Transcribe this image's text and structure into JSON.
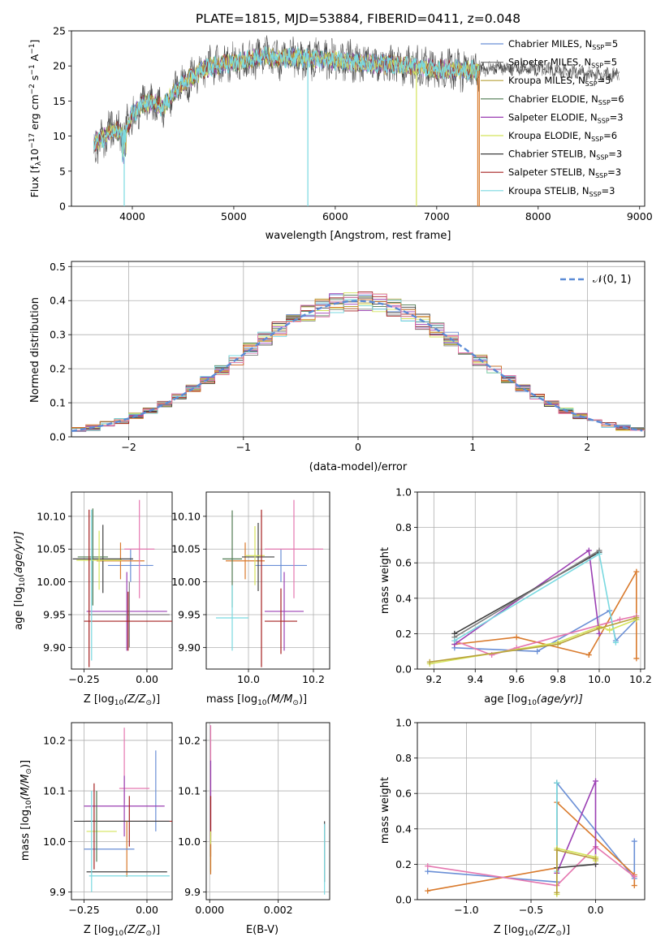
{
  "chart_data": [
    {
      "id": "spectrum",
      "type": "line",
      "title": "PLATE=1815, MJD=53884, FIBERID=0411, z=0.048",
      "xlabel": "wavelength [Angstrom, rest frame]",
      "ylabel": "Flux [f",
      "ylabel_sub": "λ",
      "ylabel_rest": "10",
      "ylabel_sup1": "−17",
      "ylabel_units": " erg cm",
      "ylabel_sup2": "−2",
      "ylabel_s": " s",
      "ylabel_sup3": "−1",
      "ylabel_a": " A",
      "ylabel_sup4": "−1",
      "ylabel_end": "]",
      "xlim": [
        3400,
        9050
      ],
      "ylim": [
        0,
        25
      ],
      "xticks": [
        4000,
        5000,
        6000,
        7000,
        8000,
        9000
      ],
      "yticks": [
        0,
        5,
        10,
        15,
        20,
        25
      ],
      "legend_placement": "upper-right",
      "legend": [
        {
          "label": "Chabrier MILES, N",
          "sub": "SSP",
          "value": "=5",
          "color": "#6a8fd6"
        },
        {
          "label": "Salpeter MILES, N",
          "sub": "SSP",
          "value": "=5",
          "color": "#7f7f7f"
        },
        {
          "label": "Kroupa MILES, N",
          "sub": "SSP",
          "value": "=5",
          "color": "#b8a13a"
        },
        {
          "label": "Chabrier ELODIE, N",
          "sub": "SSP",
          "value": "=6",
          "color": "#4f7a52"
        },
        {
          "label": "Salpeter ELODIE, N",
          "sub": "SSP",
          "value": "=3",
          "color": "#9b3fb3"
        },
        {
          "label": "Kroupa ELODIE, N",
          "sub": "SSP",
          "value": "=6",
          "color": "#d4e35a"
        },
        {
          "label": "Chabrier STELIB, N",
          "sub": "SSP",
          "value": "=3",
          "color": "#404040"
        },
        {
          "label": "Salpeter STELIB, N",
          "sub": "SSP",
          "value": "=3",
          "color": "#a52020"
        },
        {
          "label": "Kroupa STELIB, N",
          "sub": "SSP",
          "value": "=3",
          "color": "#7ad9e0"
        }
      ],
      "continuum": [
        [
          3620,
          9
        ],
        [
          3700,
          9.5
        ],
        [
          3800,
          11
        ],
        [
          3900,
          10.5
        ],
        [
          3950,
          11.5
        ],
        [
          4000,
          13
        ],
        [
          4100,
          14.5
        ],
        [
          4200,
          15
        ],
        [
          4300,
          14
        ],
        [
          4400,
          16
        ],
        [
          4500,
          17.5
        ],
        [
          4600,
          18.5
        ],
        [
          4700,
          19.5
        ],
        [
          4800,
          20
        ],
        [
          5000,
          20.5
        ],
        [
          5200,
          21
        ],
        [
          5300,
          21.5
        ],
        [
          5400,
          21
        ],
        [
          5600,
          21.3
        ],
        [
          5800,
          21
        ],
        [
          6000,
          20.8
        ],
        [
          6200,
          20.5
        ],
        [
          6400,
          20.3
        ],
        [
          6600,
          20.2
        ],
        [
          6800,
          20
        ],
        [
          7000,
          19.5
        ],
        [
          7200,
          19.5
        ],
        [
          7400,
          19.3
        ],
        [
          7600,
          19.8
        ],
        [
          7800,
          19.7
        ],
        [
          8000,
          19.6
        ],
        [
          8200,
          19.4
        ],
        [
          8400,
          19
        ],
        [
          8600,
          18.6
        ],
        [
          8800,
          18.8
        ]
      ],
      "noisy_range": [
        3620,
        7420
      ],
      "drops": [
        {
          "x": 3920,
          "color": "#7ad9e0"
        },
        {
          "x": 5730,
          "color": "#7ad9e0"
        },
        {
          "x": 6800,
          "color": "#d4e35a"
        },
        {
          "x": 7405,
          "color": "#d97a2c"
        },
        {
          "x": 7420,
          "color": "#d97a2c"
        }
      ]
    },
    {
      "id": "residuals",
      "type": "line",
      "xlabel": "(data-model)/error",
      "ylabel": "Normed distribution",
      "xlim": [
        -2.5,
        2.5
      ],
      "ylim": [
        0,
        0.515
      ],
      "xticks": [
        -2,
        -1,
        0,
        1,
        2
      ],
      "xticklabels": [
        "−2",
        "−1",
        "0",
        "1",
        "2"
      ],
      "yticks": [
        0.0,
        0.1,
        0.2,
        0.3,
        0.4,
        0.5
      ],
      "yticklabels": [
        "0.0",
        "0.1",
        "0.2",
        "0.3",
        "0.4",
        "0.5"
      ],
      "legend_label": "𝒩(0, 1)",
      "legend_placement": "upper-right",
      "bin_width": 0.125,
      "grid": true
    },
    {
      "id": "age_vs_Z",
      "type": "scatter",
      "xlabel": "Z [log",
      "xlabel_sub": "10",
      "xlabel_rest": "(Z/Z",
      "xlabel_odot": "⊙",
      "xlabel_end": ")]",
      "ylabel": "age  [log",
      "ylabel_sub": "10",
      "ylabel_rest": "(age/yr)]",
      "xlim": [
        -0.3,
        0.1
      ],
      "ylim": [
        9.867,
        10.137
      ],
      "xticks": [
        -0.25,
        0.0
      ],
      "xticklabels": [
        "−0.25",
        "0.00"
      ],
      "yticks": [
        9.9,
        9.95,
        10.0,
        10.05,
        10.1
      ],
      "yticklabels": [
        "9.90",
        "9.95",
        "10.00",
        "10.05",
        "10.10"
      ],
      "points": [
        {
          "x": -0.065,
          "xe": 0.09,
          "y": 10.025,
          "ye": 0.025,
          "color": "#6a8fd6"
        },
        {
          "x": -0.105,
          "xe": 0.095,
          "y": 10.032,
          "ye": 0.028,
          "color": "#d97a2c"
        },
        {
          "x": -0.175,
          "xe": 0.12,
          "y": 10.035,
          "ye": 0.052,
          "color": "#404040"
        },
        {
          "x": -0.215,
          "xe": 0.06,
          "y": 10.038,
          "ye": 0.074,
          "color": "#4f7a52"
        },
        {
          "x": -0.19,
          "xe": 0.09,
          "y": 10.033,
          "ye": 0.045,
          "color": "#d4e35a"
        },
        {
          "x": -0.03,
          "xe": 0.06,
          "y": 10.05,
          "ye": 0.075,
          "color": "#e577b0"
        },
        {
          "x": -0.08,
          "xe": 0.16,
          "y": 9.955,
          "ye": 0.06,
          "color": "#9b3fb3"
        },
        {
          "x": -0.07,
          "xe": 0.16,
          "y": 9.95,
          "ye": 0.05,
          "color": "#7f7f7f"
        },
        {
          "x": -0.075,
          "xe": 0.175,
          "y": 9.94,
          "ye": 0.045,
          "color": "#a52020"
        },
        {
          "x": -0.23,
          "xe": 0.0,
          "y": 9.99,
          "ye": 0.12,
          "color": "#a52020"
        },
        {
          "x": -0.22,
          "xe": 0.0,
          "y": 9.995,
          "ye": 0.115,
          "color": "#7ad9e0"
        }
      ]
    },
    {
      "id": "age_vs_mass",
      "type": "scatter",
      "xlabel": "mass [log",
      "xlabel_sub": "10",
      "xlabel_rest": "(M/M",
      "xlabel_odot": "⊙",
      "xlabel_end": ")]",
      "xlim": [
        9.87,
        10.25
      ],
      "ylim": [
        9.867,
        10.137
      ],
      "xticks": [
        10.0,
        10.2
      ],
      "xticklabels": [
        "10.0",
        "10.2"
      ],
      "yticks": [
        9.9,
        9.95,
        10.0,
        10.05,
        10.1
      ],
      "yticklabels": [
        "9.90",
        "9.95",
        "10.00",
        "10.05",
        "10.10"
      ],
      "points": [
        {
          "x": 10.1,
          "xe": 0.08,
          "y": 10.025,
          "ye": 0.025,
          "color": "#6a8fd6"
        },
        {
          "x": 9.99,
          "xe": 0.06,
          "y": 10.032,
          "ye": 0.028,
          "color": "#d97a2c"
        },
        {
          "x": 10.03,
          "xe": 0.05,
          "y": 10.038,
          "ye": 0.052,
          "color": "#404040"
        },
        {
          "x": 9.95,
          "xe": 0.03,
          "y": 10.035,
          "ye": 0.074,
          "color": "#4f7a52"
        },
        {
          "x": 10.02,
          "xe": 0.03,
          "y": 10.04,
          "ye": 0.045,
          "color": "#d4e35a"
        },
        {
          "x": 10.14,
          "xe": 0.09,
          "y": 10.05,
          "ye": 0.075,
          "color": "#e577b0"
        },
        {
          "x": 10.11,
          "xe": 0.06,
          "y": 9.955,
          "ye": 0.06,
          "color": "#9b3fb3"
        },
        {
          "x": 10.1,
          "xe": 0.05,
          "y": 9.94,
          "ye": 0.05,
          "color": "#a52020"
        },
        {
          "x": 9.95,
          "xe": 0.05,
          "y": 9.945,
          "ye": 0.05,
          "color": "#7ad9e0"
        },
        {
          "x": 10.04,
          "xe": 0.0,
          "y": 9.99,
          "ye": 0.12,
          "color": "#a52020"
        }
      ]
    },
    {
      "id": "massweight_vs_age",
      "type": "line",
      "xlabel": "age  [log",
      "xlabel_sub": "10",
      "xlabel_rest": "(age/yr)]",
      "ylabel": "mass weight",
      "xlim": [
        9.12,
        10.22
      ],
      "ylim": [
        0.0,
        1.0
      ],
      "xticks": [
        9.2,
        9.4,
        9.6,
        9.8,
        10.0,
        10.2
      ],
      "xticklabels": [
        "9.2",
        "9.4",
        "9.6",
        "9.8",
        "10.0",
        "10.2"
      ],
      "yticks": [
        0.0,
        0.2,
        0.4,
        0.6,
        0.8,
        1.0
      ],
      "yticklabels": [
        "0.0",
        "0.2",
        "0.4",
        "0.6",
        "0.8",
        "1.0"
      ],
      "series": [
        {
          "color": "#6a8fd6",
          "x": [
            9.3,
            9.7,
            10.05,
            10.08,
            10.18
          ],
          "y": [
            0.12,
            0.1,
            0.33,
            0.16,
            0.28
          ]
        },
        {
          "color": "#d97a2c",
          "x": [
            9.3,
            9.6,
            9.95,
            10.18,
            10.18
          ],
          "y": [
            0.14,
            0.18,
            0.08,
            0.55,
            0.06
          ]
        },
        {
          "color": "#e577b0",
          "x": [
            9.3,
            9.48,
            9.6,
            10.1,
            10.18
          ],
          "y": [
            0.16,
            0.08,
            0.12,
            0.28,
            0.3
          ]
        },
        {
          "color": "#9b3fb3",
          "x": [
            9.3,
            9.95,
            10.0
          ],
          "y": [
            0.14,
            0.67,
            0.2
          ]
        },
        {
          "color": "#404040",
          "x": [
            9.3,
            10.0
          ],
          "y": [
            0.2,
            0.66
          ]
        },
        {
          "color": "#7f7f7f",
          "x": [
            9.3,
            10.0
          ],
          "y": [
            0.18,
            0.67
          ]
        },
        {
          "color": "#7ad9e0",
          "x": [
            9.3,
            10.0,
            10.08
          ],
          "y": [
            0.16,
            0.65,
            0.15
          ]
        },
        {
          "color": "#d4e35a",
          "x": [
            9.18,
            9.8,
            10.0,
            10.05,
            10.18
          ],
          "y": [
            0.03,
            0.15,
            0.24,
            0.22,
            0.28
          ]
        },
        {
          "color": "#b8a13a",
          "x": [
            9.18,
            9.8,
            10.0,
            10.18
          ],
          "y": [
            0.04,
            0.14,
            0.23,
            0.29
          ]
        }
      ]
    },
    {
      "id": "mass_vs_Z",
      "type": "scatter",
      "xlabel": "Z [log",
      "xlabel_sub": "10",
      "xlabel_rest": "(Z/Z",
      "xlabel_odot": "⊙",
      "xlabel_end": ")]",
      "ylabel": "mass [log",
      "ylabel_sub": "10",
      "ylabel_rest": "(M/M",
      "ylabel_odot": "⊙",
      "ylabel_end": ")]",
      "xlim": [
        -0.3,
        0.1
      ],
      "ylim": [
        9.885,
        10.235
      ],
      "xticks": [
        -0.25,
        0.0
      ],
      "xticklabels": [
        "−0.25",
        "0.00"
      ],
      "yticks": [
        9.9,
        10.0,
        10.1,
        10.2
      ],
      "yticklabels": [
        "9.9",
        "10.0",
        "10.1",
        "10.2"
      ],
      "points": [
        {
          "x": 0.035,
          "xe": 0.0,
          "y": 10.1,
          "ye": 0.08,
          "color": "#6a8fd6"
        },
        {
          "x": -0.05,
          "xe": 0.06,
          "y": 10.105,
          "ye": 0.0,
          "color": "#e577b0"
        },
        {
          "x": -0.09,
          "xe": 0.0,
          "y": 10.15,
          "ye": 0.075,
          "color": "#e577b0"
        },
        {
          "x": -0.09,
          "xe": 0.16,
          "y": 10.07,
          "ye": 0.06,
          "color": "#9b3fb3"
        },
        {
          "x": -0.07,
          "xe": 0.175,
          "y": 10.04,
          "ye": 0.05,
          "color": "#a52020"
        },
        {
          "x": -0.1,
          "xe": 0.19,
          "y": 10.04,
          "ye": 0.0,
          "color": "#404040"
        },
        {
          "x": -0.18,
          "xe": 0.06,
          "y": 10.02,
          "ye": 0.0,
          "color": "#d4e35a"
        },
        {
          "x": -0.08,
          "xe": 0.0,
          "y": 9.985,
          "ye": 0.055,
          "color": "#d97a2c"
        },
        {
          "x": -0.15,
          "xe": 0.1,
          "y": 9.985,
          "ye": 0.0,
          "color": "#6a8fd6"
        },
        {
          "x": -0.2,
          "xe": 0.0,
          "y": 10.03,
          "ye": 0.07,
          "color": "#4f7a52"
        },
        {
          "x": -0.08,
          "xe": 0.16,
          "y": 9.94,
          "ye": 0.0,
          "color": "#404040"
        },
        {
          "x": -0.07,
          "xe": 0.16,
          "y": 9.932,
          "ye": 0.0,
          "color": "#7ad9e0"
        },
        {
          "x": -0.22,
          "xe": 0.0,
          "y": 10.0,
          "ye": 0.1,
          "color": "#7ad9e0"
        },
        {
          "x": -0.21,
          "xe": 0.0,
          "y": 10.03,
          "ye": 0.085,
          "color": "#a52020"
        }
      ]
    },
    {
      "id": "mass_vs_EBV",
      "type": "scatter",
      "xlabel": "E(B-V)",
      "xlim": [
        -0.0001,
        0.0035
      ],
      "ylim": [
        9.885,
        10.235
      ],
      "xticks": [
        0.0,
        0.002
      ],
      "xticklabels": [
        "0.000",
        "0.002"
      ],
      "yticks": [
        9.9,
        10.0,
        10.1,
        10.2
      ],
      "yticklabels": [
        "9.9",
        "10.0",
        "10.1",
        "10.2"
      ],
      "points": [
        {
          "x": 3e-05,
          "y": 10.12,
          "ye": 0.11,
          "color": "#e577b0"
        },
        {
          "x": 3e-05,
          "y": 10.08,
          "ye": 0.08,
          "color": "#9b3fb3"
        },
        {
          "x": 3e-05,
          "y": 10.03,
          "ye": 0.06,
          "color": "#a52020"
        },
        {
          "x": 3e-05,
          "y": 9.98,
          "ye": 0.04,
          "color": "#d4e35a"
        },
        {
          "x": 3e-05,
          "y": 9.965,
          "ye": 0.03,
          "color": "#d97a2c"
        },
        {
          "x": 0.00335,
          "y": 9.98,
          "ye": 0.06,
          "color": "#404040"
        },
        {
          "x": 0.00335,
          "y": 9.965,
          "ye": 0.07,
          "color": "#7ad9e0"
        }
      ]
    },
    {
      "id": "massweight_vs_Z",
      "type": "line",
      "xlabel": "Z [log",
      "xlabel_sub": "10",
      "xlabel_rest": "(Z/Z",
      "xlabel_odot": "⊙",
      "xlabel_end": ")]",
      "ylabel": "mass weight",
      "xlim": [
        -1.38,
        0.38
      ],
      "ylim": [
        0.0,
        1.0
      ],
      "xticks": [
        -1.0,
        -0.5,
        0.0
      ],
      "xticklabels": [
        "−1.0",
        "−0.5",
        "0.0"
      ],
      "yticks": [
        0.0,
        0.2,
        0.4,
        0.6,
        0.8,
        1.0
      ],
      "yticklabels": [
        "0.0",
        "0.2",
        "0.4",
        "0.6",
        "0.8",
        "1.0"
      ],
      "series": [
        {
          "color": "#6a8fd6",
          "x": [
            -1.3,
            -0.3,
            -0.3,
            0.3,
            0.3
          ],
          "y": [
            0.16,
            0.1,
            0.66,
            0.12,
            0.33
          ]
        },
        {
          "color": "#d97a2c",
          "x": [
            -1.3,
            -0.3,
            -0.3,
            0.3,
            0.3
          ],
          "y": [
            0.05,
            0.18,
            0.55,
            0.14,
            0.08
          ]
        },
        {
          "color": "#e577b0",
          "x": [
            -1.3,
            -0.3,
            0.0,
            0.3
          ],
          "y": [
            0.19,
            0.08,
            0.3,
            0.13
          ]
        },
        {
          "color": "#9b3fb3",
          "x": [
            -0.3,
            0.0,
            0.0
          ],
          "y": [
            0.15,
            0.67,
            0.2
          ]
        },
        {
          "color": "#404040",
          "x": [
            -0.3,
            -0.3,
            0.0
          ],
          "y": [
            0.66,
            0.18,
            0.2
          ]
        },
        {
          "color": "#7ad9e0",
          "x": [
            -0.3,
            -0.3
          ],
          "y": [
            0.66,
            0.16
          ]
        },
        {
          "color": "#d4e35a",
          "x": [
            -0.3,
            -0.3,
            0.0,
            0.0
          ],
          "y": [
            0.03,
            0.29,
            0.24,
            0.22
          ]
        },
        {
          "color": "#b8a13a",
          "x": [
            -0.3,
            -0.3,
            0.0
          ],
          "y": [
            0.04,
            0.28,
            0.23
          ]
        }
      ]
    }
  ]
}
